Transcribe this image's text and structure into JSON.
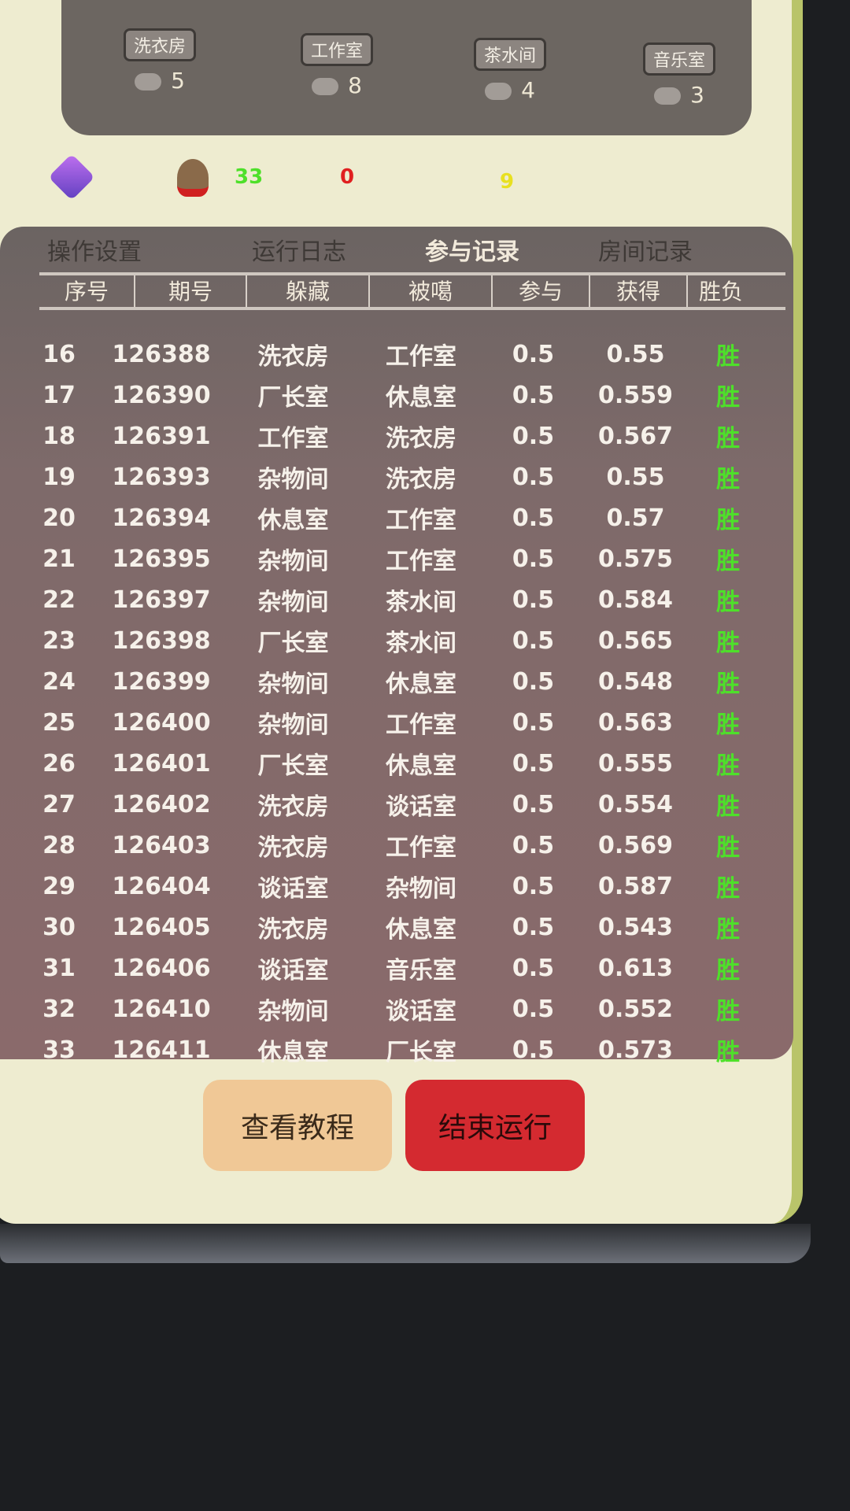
{
  "rooms": [
    {
      "name": "洗衣房",
      "count": "5"
    },
    {
      "name": "工作室",
      "count": "8"
    },
    {
      "name": "茶水间",
      "count": "4"
    },
    {
      "name": "音乐室",
      "count": "3"
    }
  ],
  "stats": {
    "wins": "33",
    "losses": "0",
    "other": "9",
    "colors": {
      "wins": "#4ee02a",
      "losses": "#e02020",
      "other": "#e8e020"
    }
  },
  "tabs": [
    {
      "label": "操作设置"
    },
    {
      "label": "运行日志"
    },
    {
      "label": "参与记录",
      "active": true
    },
    {
      "label": "房间记录"
    }
  ],
  "table": {
    "headers": [
      "序号",
      "期号",
      "躲藏",
      "被噶",
      "参与",
      "获得",
      "胜负"
    ],
    "rows": [
      [
        "16",
        "126388",
        "洗衣房",
        "工作室",
        "0.5",
        "0.55",
        "胜"
      ],
      [
        "17",
        "126390",
        "厂长室",
        "休息室",
        "0.5",
        "0.559",
        "胜"
      ],
      [
        "18",
        "126391",
        "工作室",
        "洗衣房",
        "0.5",
        "0.567",
        "胜"
      ],
      [
        "19",
        "126393",
        "杂物间",
        "洗衣房",
        "0.5",
        "0.55",
        "胜"
      ],
      [
        "20",
        "126394",
        "休息室",
        "工作室",
        "0.5",
        "0.57",
        "胜"
      ],
      [
        "21",
        "126395",
        "杂物间",
        "工作室",
        "0.5",
        "0.575",
        "胜"
      ],
      [
        "22",
        "126397",
        "杂物间",
        "茶水间",
        "0.5",
        "0.584",
        "胜"
      ],
      [
        "23",
        "126398",
        "厂长室",
        "茶水间",
        "0.5",
        "0.565",
        "胜"
      ],
      [
        "24",
        "126399",
        "杂物间",
        "休息室",
        "0.5",
        "0.548",
        "胜"
      ],
      [
        "25",
        "126400",
        "杂物间",
        "工作室",
        "0.5",
        "0.563",
        "胜"
      ],
      [
        "26",
        "126401",
        "厂长室",
        "休息室",
        "0.5",
        "0.555",
        "胜"
      ],
      [
        "27",
        "126402",
        "洗衣房",
        "谈话室",
        "0.5",
        "0.554",
        "胜"
      ],
      [
        "28",
        "126403",
        "洗衣房",
        "工作室",
        "0.5",
        "0.569",
        "胜"
      ],
      [
        "29",
        "126404",
        "谈话室",
        "杂物间",
        "0.5",
        "0.587",
        "胜"
      ],
      [
        "30",
        "126405",
        "洗衣房",
        "休息室",
        "0.5",
        "0.543",
        "胜"
      ],
      [
        "31",
        "126406",
        "谈话室",
        "音乐室",
        "0.5",
        "0.613",
        "胜"
      ],
      [
        "32",
        "126410",
        "杂物间",
        "谈话室",
        "0.5",
        "0.552",
        "胜"
      ],
      [
        "33",
        "126411",
        "休息室",
        "厂长室",
        "0.5",
        "0.573",
        "胜"
      ]
    ]
  },
  "buttons": {
    "tutorial": "查看教程",
    "stop": "结束运行",
    "tutorial_color": "#f0c896",
    "stop_color": "#d42a30"
  }
}
